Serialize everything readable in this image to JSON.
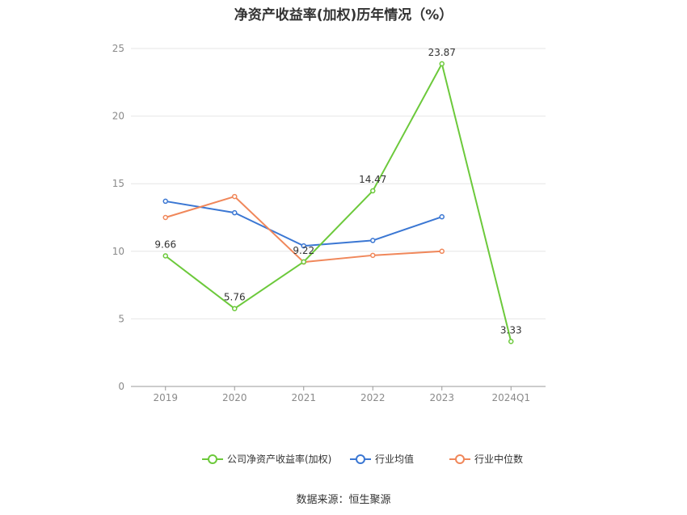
{
  "chart_data": {
    "type": "line",
    "title": "净资产收益率(加权)历年情况（%）",
    "categories": [
      "2019",
      "2020",
      "2021",
      "2022",
      "2023",
      "2024Q1"
    ],
    "ylim": [
      0,
      25
    ],
    "yticks": [
      0,
      5,
      10,
      15,
      20,
      25
    ],
    "grid": true,
    "legend_position": "bottom-center",
    "series": [
      {
        "name": "公司净资产收益率(加权)",
        "color": "#6cc93b",
        "values": [
          9.66,
          5.76,
          9.22,
          14.47,
          23.87,
          3.33
        ],
        "data_labels": [
          "9.66",
          "5.76",
          "9.22",
          "14.47",
          "23.87",
          "3.33"
        ]
      },
      {
        "name": "行业均值",
        "color": "#3b77d3",
        "values": [
          13.7,
          12.85,
          10.4,
          10.8,
          12.55,
          null
        ]
      },
      {
        "name": "行业中位数",
        "color": "#f0875a",
        "values": [
          12.5,
          14.05,
          9.2,
          9.7,
          10.0,
          null
        ]
      }
    ]
  },
  "source_text": "数据来源：恒生聚源"
}
